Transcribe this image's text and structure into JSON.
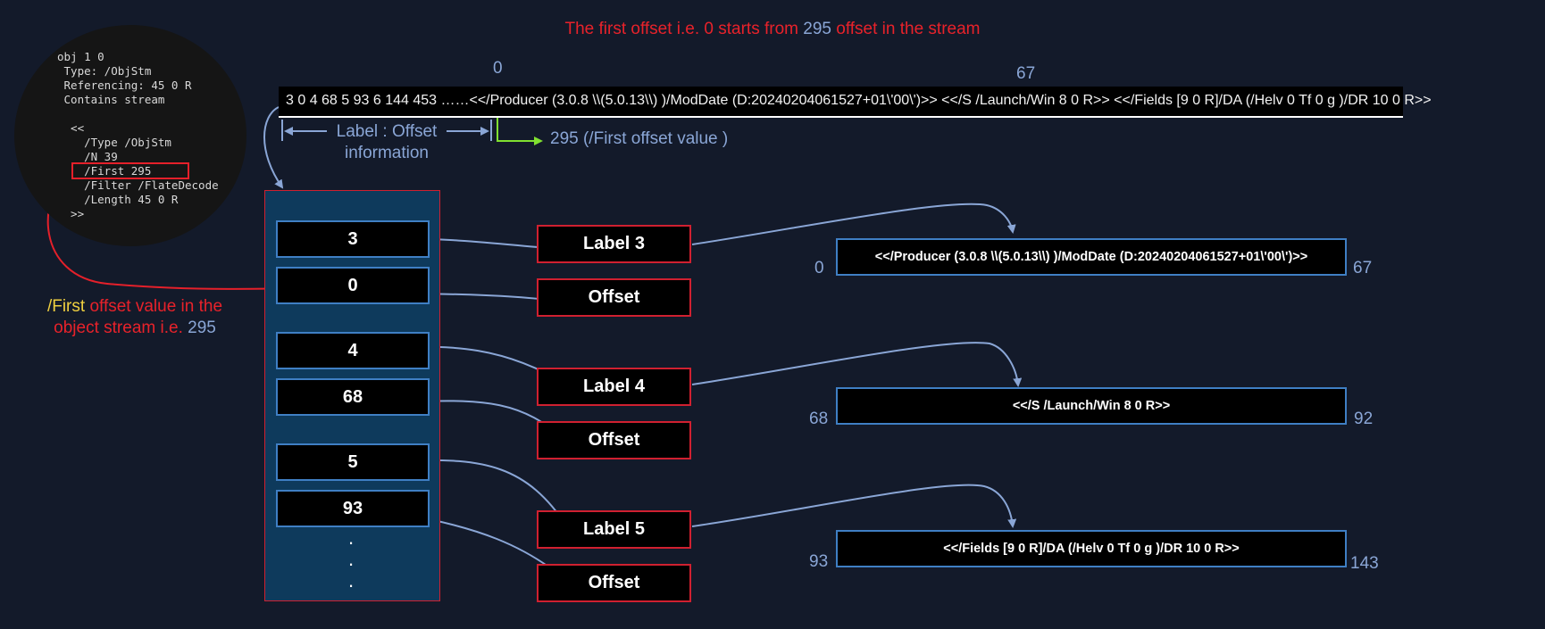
{
  "title": {
    "part1": "The first offset i.e. 0 starts from ",
    "value": "295",
    "part2": "  offset in the stream"
  },
  "obj_info": {
    "lines": [
      "obj 1 0",
      " Type: /ObjStm",
      " Referencing: 45 0 R",
      " Contains stream",
      "",
      "  <<",
      "    /Type /ObjStm",
      "    /N 39",
      "    /First 295",
      "    /Filter /FlateDecode",
      "    /Length 45 0 R",
      "  >>"
    ]
  },
  "stream": {
    "text": "3 0 4 68 5 93 6 144 453 ……<</Producer (3.0.8 \\\\(5.0.13\\\\) )/ModDate (D:20240204061527+01\\'00\\')>> <</S /Launch/Win 8 0 R>> <</Fields [9 0 R]/DA (/Helv 0 Tf 0 g )/DR 10 0 R>>",
    "marker_start": "0",
    "marker_end": "67"
  },
  "annotations": {
    "label_offset_line1": "Label : Offset",
    "label_offset_line2": "information",
    "first_offset_value": "295 (/First offset value )",
    "first_note_y": "/First",
    "first_note_r1": " offset value in the",
    "first_note_r2": "object stream i.e. ",
    "first_note_b": "295"
  },
  "pairs": [
    {
      "label": "3",
      "offset": "0"
    },
    {
      "label": "4",
      "offset": "68"
    },
    {
      "label": "5",
      "offset": "93"
    }
  ],
  "dots": [
    ".",
    ".",
    "."
  ],
  "label_boxes": [
    "Label 3",
    "Offset",
    "Label 4",
    "Offset",
    "Label 5",
    "Offset"
  ],
  "objects": [
    {
      "content": "<</Producer (3.0.8 \\\\(5.0.13\\\\) )/ModDate (D:20240204061527+01\\'00\\')>>",
      "start": "0",
      "end": "67"
    },
    {
      "content": "<</S /Launch/Win 8 0 R>>",
      "start": "68",
      "end": "92"
    },
    {
      "content": "<</Fields [9 0 R]/DA (/Helv 0 Tf 0 g )/DR 10 0 R>>",
      "start": "93",
      "end": "143"
    }
  ],
  "colors": {
    "background": "#131a2a",
    "red": "#e8222a",
    "blue_text": "#8aa6d6",
    "yellow": "#f0d040",
    "green": "#80e030",
    "box_blue": "#3f7fc4"
  }
}
